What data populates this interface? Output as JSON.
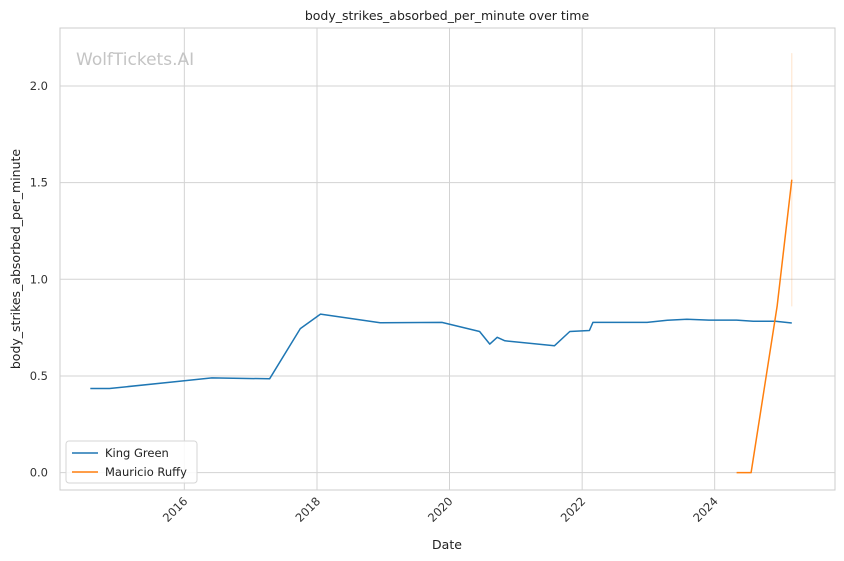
{
  "watermark": "WolfTickets.AI",
  "chart_data": {
    "type": "line",
    "title": "body_strikes_absorbed_per_minute over time",
    "xlabel": "Date",
    "ylabel": "body_strikes_absorbed_per_minute",
    "xlim": [
      "2014-02-15",
      "2025-10-25"
    ],
    "ylim": [
      -0.09,
      2.3
    ],
    "x_ticks": [
      "2016",
      "2018",
      "2020",
      "2022",
      "2024"
    ],
    "y_ticks": [
      "0.0",
      "0.5",
      "1.0",
      "1.5",
      "2.0"
    ],
    "grid": true,
    "legend_position": "lower-left",
    "series": [
      {
        "name": "King Green",
        "color": "#1f77b4",
        "x": [
          "2014-08-01",
          "2014-11-15",
          "2016-06-01",
          "2017-04-15",
          "2017-10-01",
          "2018-01-20",
          "2018-12-15",
          "2019-11-20",
          "2020-06-15",
          "2020-08-10",
          "2020-09-20",
          "2020-11-01",
          "2021-08-01",
          "2021-10-25",
          "2022-02-10",
          "2022-03-01",
          "2022-12-25",
          "2023-04-15",
          "2023-08-01",
          "2023-12-01",
          "2024-05-01",
          "2024-08-01",
          "2024-12-01",
          "2025-03-01"
        ],
        "y": [
          0.435,
          0.435,
          0.49,
          0.485,
          0.745,
          0.82,
          0.775,
          0.777,
          0.73,
          0.665,
          0.7,
          0.682,
          0.656,
          0.73,
          0.735,
          0.777,
          0.777,
          0.788,
          0.793,
          0.789,
          0.789,
          0.783,
          0.783,
          0.774
        ]
      },
      {
        "name": "Mauricio Ruffy",
        "color": "#ff7f0e",
        "x": [
          "2024-05-01",
          "2024-07-20",
          "2024-12-10",
          "2025-03-01"
        ],
        "y": [
          0.0,
          0.0,
          0.86,
          1.515
        ]
      }
    ],
    "error_band": {
      "series": "Mauricio Ruffy",
      "x": "2025-03-01",
      "low": 0.86,
      "high": 2.17,
      "color": "#ff7f0e"
    }
  }
}
